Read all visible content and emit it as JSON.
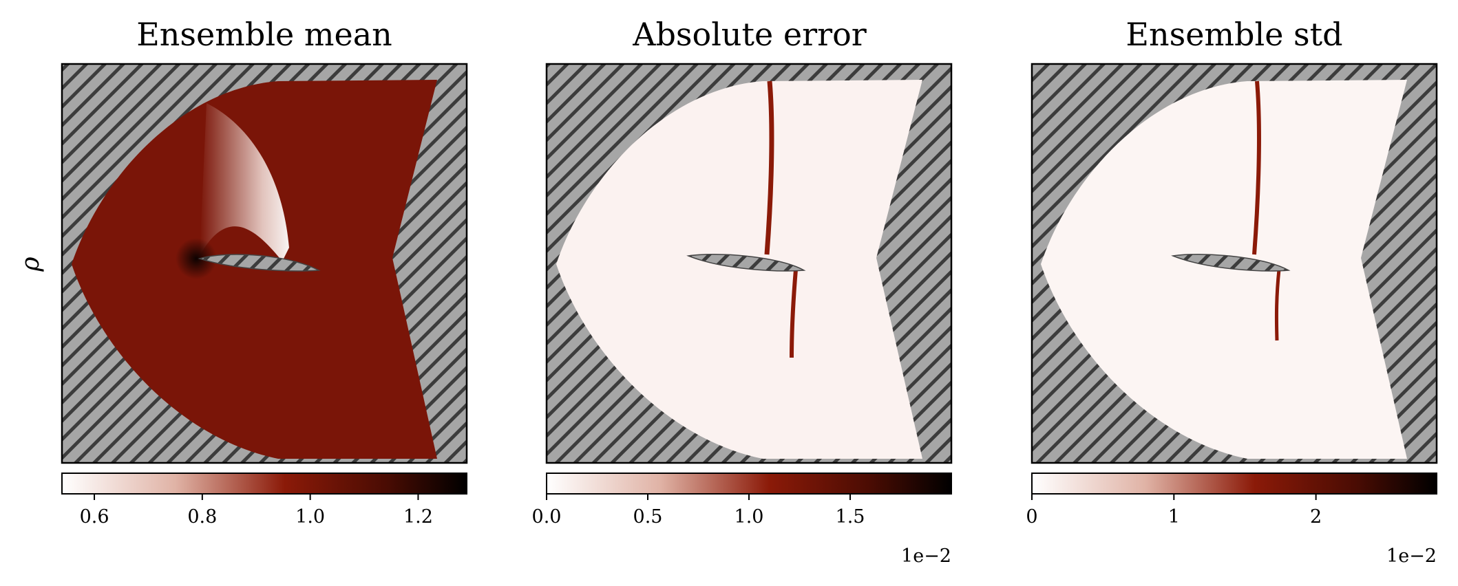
{
  "chart_data": [
    {
      "type": "heatmap",
      "title": "Ensemble mean",
      "ylabel": "ρ",
      "colorbar": {
        "range": [
          0.54,
          1.29
        ],
        "ticks": [
          0.6,
          0.8,
          1.0,
          1.2
        ],
        "tick_labels": [
          "0.6",
          "0.8",
          "1.0",
          "1.2"
        ],
        "offset_label": ""
      },
      "background": "hatched-gray",
      "colors": [
        "#ffffff",
        "#8b1a08",
        "#000000"
      ]
    },
    {
      "type": "heatmap",
      "title": "Absolute error",
      "ylabel": "",
      "colorbar": {
        "range": [
          0.0,
          2.0
        ],
        "ticks": [
          0.0,
          0.5,
          1.0,
          1.5
        ],
        "tick_labels": [
          "0.0",
          "0.5",
          "1.0",
          "1.5"
        ],
        "offset_label": "1e−2"
      },
      "background": "hatched-gray",
      "colors": [
        "#ffffff",
        "#8b1a08",
        "#000000"
      ]
    },
    {
      "type": "heatmap",
      "title": "Ensemble std",
      "ylabel": "",
      "colorbar": {
        "range": [
          0.0,
          2.85
        ],
        "ticks": [
          0,
          1,
          2
        ],
        "tick_labels": [
          "0",
          "1",
          "2"
        ],
        "offset_label": "1e−2"
      },
      "background": "hatched-gray",
      "colors": [
        "#ffffff",
        "#8b1a08",
        "#000000"
      ]
    }
  ]
}
